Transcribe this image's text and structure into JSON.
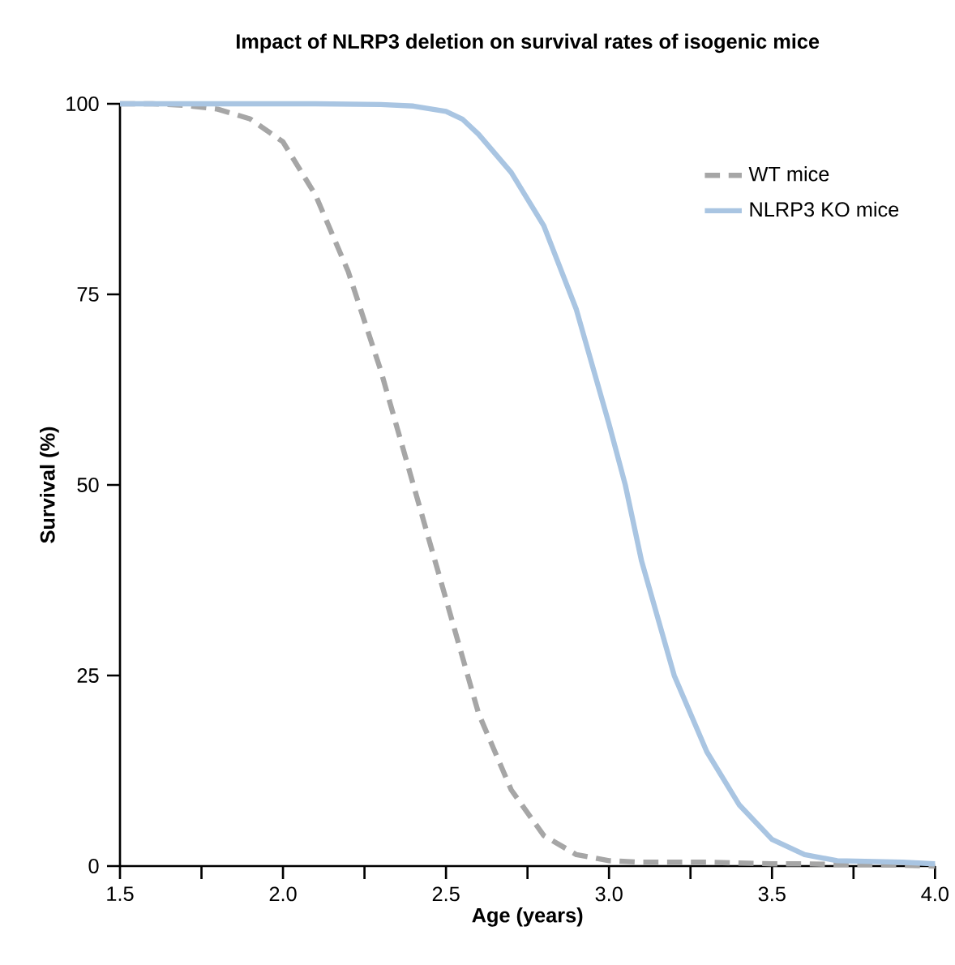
{
  "chart_data": {
    "type": "line",
    "title": "Impact of NLRP3 deletion on survival rates of isogenic mice",
    "xlabel": "Age (years)",
    "ylabel": "Survival (%)",
    "xlim": [
      1.5,
      4.0
    ],
    "ylim": [
      0,
      100
    ],
    "xticks": [
      1.5,
      {
        "value": 1.75,
        "label": null
      },
      {
        "value": 2.0,
        "label": "2.0"
      },
      {
        "value": 2.25,
        "label": null
      },
      2.5,
      {
        "value": 2.75,
        "label": null
      },
      {
        "value": 3.0,
        "label": "3.0"
      },
      {
        "value": 3.25,
        "label": null
      },
      3.5,
      {
        "value": 3.75,
        "label": null
      },
      {
        "value": 4.0,
        "label": "4.0"
      }
    ],
    "yticks": [
      0,
      25,
      50,
      75,
      100
    ],
    "grid": false,
    "legend": "top right",
    "marker": "none",
    "series": [
      {
        "name": "WT mice",
        "color": "#a6a6a6",
        "line_style": "dashed",
        "x": [
          1.5,
          1.6,
          1.7,
          1.8,
          1.9,
          2.0,
          2.1,
          2.2,
          2.3,
          2.4,
          2.5,
          2.6,
          2.7,
          2.8,
          2.9,
          3.0,
          3.1,
          3.2,
          3.3,
          3.4,
          3.5,
          3.6,
          3.7,
          3.8,
          3.9,
          4.0
        ],
        "values": [
          100,
          100,
          99.8,
          99.3,
          98,
          95,
          88,
          78,
          65,
          50,
          35,
          20,
          10,
          4,
          1.5,
          0.7,
          0.5,
          0.5,
          0.5,
          0.4,
          0.3,
          0.3,
          0.2,
          0.2,
          0.1,
          0
        ]
      },
      {
        "name": "NLRP3 KO mice",
        "color": "#a9c5e2",
        "line_style": "solid",
        "x": [
          1.5,
          1.7,
          1.9,
          2.1,
          2.3,
          2.4,
          2.5,
          2.55,
          2.6,
          2.7,
          2.8,
          2.9,
          3.0,
          3.05,
          3.1,
          3.2,
          3.3,
          3.4,
          3.5,
          3.6,
          3.7,
          3.8,
          3.9,
          4.0
        ],
        "values": [
          100,
          100,
          100,
          100,
          99.9,
          99.7,
          99,
          98,
          96,
          91,
          84,
          73,
          58,
          50,
          40,
          25,
          15,
          8,
          3.5,
          1.5,
          0.7,
          0.6,
          0.5,
          0.3
        ]
      }
    ]
  }
}
